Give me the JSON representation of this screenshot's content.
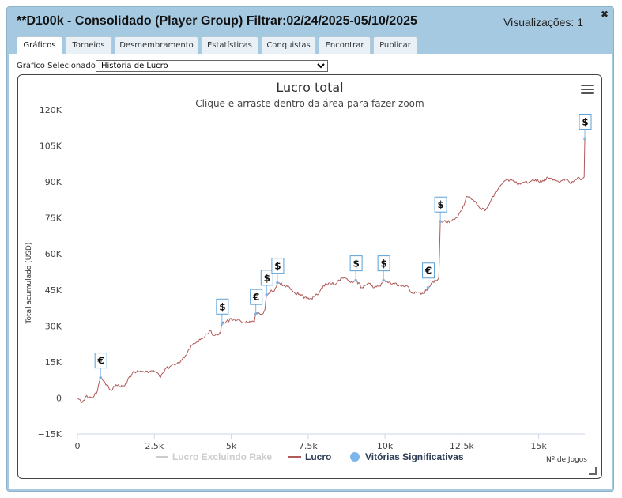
{
  "window": {
    "title": "**D100k - Consolidado (Player Group) Filtrar:02/24/2025-05/10/2025",
    "views": "Visualizações: 1",
    "close_icon": "close-icon"
  },
  "tabs": [
    {
      "label": "Gráficos",
      "active": true
    },
    {
      "label": "Torneios",
      "active": false
    },
    {
      "label": "Desmembramento",
      "active": false
    },
    {
      "label": "Estatísticas",
      "active": false
    },
    {
      "label": "Conquistas",
      "active": false
    },
    {
      "label": "Encontrar",
      "active": false
    },
    {
      "label": "Publicar",
      "active": false
    }
  ],
  "selector": {
    "label": "Gráfico Selecionado:",
    "value": "História de Lucro"
  },
  "chart_data": {
    "type": "line",
    "title": "Lucro total",
    "subtitle": "Clique e arraste dentro da área para fazer zoom",
    "ylabel": "Total acumulado (USD)",
    "xlabel": "Nº de Jogos",
    "xlim": [
      0,
      16500
    ],
    "ylim": [
      -15000,
      120000
    ],
    "x_ticks": [
      {
        "value": 0,
        "label": "0"
      },
      {
        "value": 2500,
        "label": "2.5k"
      },
      {
        "value": 5000,
        "label": "5k"
      },
      {
        "value": 7500,
        "label": "7.5k"
      },
      {
        "value": 10000,
        "label": "10k"
      },
      {
        "value": 12500,
        "label": "12.5k"
      },
      {
        "value": 15000,
        "label": "15k"
      }
    ],
    "y_ticks": [
      {
        "value": -15000,
        "label": "−15K"
      },
      {
        "value": 0,
        "label": "0"
      },
      {
        "value": 15000,
        "label": "15K"
      },
      {
        "value": 30000,
        "label": "30K"
      },
      {
        "value": 45000,
        "label": "45K"
      },
      {
        "value": 60000,
        "label": "60K"
      },
      {
        "value": 75000,
        "label": "75K"
      },
      {
        "value": 90000,
        "label": "90K"
      },
      {
        "value": 105000,
        "label": "105K"
      },
      {
        "value": 120000,
        "label": "120K"
      }
    ],
    "grid": false,
    "legend_position": "bottom",
    "legend": [
      {
        "label": "Lucro Excluindo Rake",
        "color": "#cccccc",
        "symbol": "line",
        "enabled": false
      },
      {
        "label": "Lucro",
        "color": "#b05a5a",
        "symbol": "line",
        "enabled": true
      },
      {
        "label": "Vitórias Significativas",
        "color": "#7cb5ec",
        "symbol": "circle",
        "enabled": true
      }
    ],
    "series": [
      {
        "name": "Lucro",
        "color": "#b05a5a",
        "points": [
          [
            0,
            0
          ],
          [
            150,
            -2000
          ],
          [
            300,
            1000
          ],
          [
            500,
            0
          ],
          [
            650,
            3000
          ],
          [
            750,
            8500
          ],
          [
            850,
            7000
          ],
          [
            1000,
            5000
          ],
          [
            1100,
            3000
          ],
          [
            1250,
            5500
          ],
          [
            1400,
            4500
          ],
          [
            1600,
            6000
          ],
          [
            1700,
            9000
          ],
          [
            1850,
            11000
          ],
          [
            2100,
            11000
          ],
          [
            2300,
            10500
          ],
          [
            2500,
            11000
          ],
          [
            2700,
            8500
          ],
          [
            2850,
            12000
          ],
          [
            3000,
            13000
          ],
          [
            3200,
            14000
          ],
          [
            3400,
            16000
          ],
          [
            3550,
            18000
          ],
          [
            3700,
            22000
          ],
          [
            3900,
            23500
          ],
          [
            4100,
            25000
          ],
          [
            4300,
            28000
          ],
          [
            4450,
            26000
          ],
          [
            4600,
            26500
          ],
          [
            4650,
            27000
          ],
          [
            4700,
            31000
          ],
          [
            4850,
            32000
          ],
          [
            5100,
            33000
          ],
          [
            5350,
            31500
          ],
          [
            5600,
            32000
          ],
          [
            5750,
            31500
          ],
          [
            5800,
            35000
          ],
          [
            6000,
            35000
          ],
          [
            6100,
            37000
          ],
          [
            6150,
            43000
          ],
          [
            6300,
            45000
          ],
          [
            6400,
            44500
          ],
          [
            6500,
            48000
          ],
          [
            6700,
            47000
          ],
          [
            6900,
            46000
          ],
          [
            7050,
            44000
          ],
          [
            7200,
            43000
          ],
          [
            7400,
            42000
          ],
          [
            7600,
            41500
          ],
          [
            7800,
            43000
          ],
          [
            8000,
            47000
          ],
          [
            8200,
            48000
          ],
          [
            8400,
            47500
          ],
          [
            8600,
            50000
          ],
          [
            8800,
            49000
          ],
          [
            8950,
            48000
          ],
          [
            9050,
            49000
          ],
          [
            9250,
            46000
          ],
          [
            9450,
            48000
          ],
          [
            9650,
            46000
          ],
          [
            9850,
            46500
          ],
          [
            9950,
            49000
          ],
          [
            10100,
            48000
          ],
          [
            10300,
            47500
          ],
          [
            10500,
            47000
          ],
          [
            10700,
            47000
          ],
          [
            10800,
            45000
          ],
          [
            10950,
            43500
          ],
          [
            11100,
            44000
          ],
          [
            11250,
            43500
          ],
          [
            11400,
            46000
          ],
          [
            11550,
            48500
          ],
          [
            11700,
            49000
          ],
          [
            11750,
            50000
          ],
          [
            11800,
            73500
          ],
          [
            11950,
            74000
          ],
          [
            12100,
            73000
          ],
          [
            12300,
            75000
          ],
          [
            12500,
            78000
          ],
          [
            12650,
            84000
          ],
          [
            12900,
            82000
          ],
          [
            13100,
            79000
          ],
          [
            13250,
            78000
          ],
          [
            13400,
            81000
          ],
          [
            13600,
            86000
          ],
          [
            13800,
            89000
          ],
          [
            14000,
            91000
          ],
          [
            14200,
            90000
          ],
          [
            14400,
            89000
          ],
          [
            14700,
            90000
          ],
          [
            14900,
            91000
          ],
          [
            15100,
            90000
          ],
          [
            15300,
            92000
          ],
          [
            15500,
            91000
          ],
          [
            15700,
            90000
          ],
          [
            15900,
            91000
          ],
          [
            16050,
            89000
          ],
          [
            16200,
            91000
          ],
          [
            16300,
            92000
          ],
          [
            16400,
            91000
          ],
          [
            16480,
            92000
          ],
          [
            16500,
            108000
          ]
        ]
      }
    ],
    "significant_wins": [
      {
        "x": 750,
        "y": 8500,
        "label": "€"
      },
      {
        "x": 4700,
        "y": 31000,
        "label": "$"
      },
      {
        "x": 5800,
        "y": 35000,
        "label": "€"
      },
      {
        "x": 6150,
        "y": 43000,
        "label": "$"
      },
      {
        "x": 6500,
        "y": 48000,
        "label": "$"
      },
      {
        "x": 9050,
        "y": 49000,
        "label": "$"
      },
      {
        "x": 9950,
        "y": 49000,
        "label": "$"
      },
      {
        "x": 11400,
        "y": 46000,
        "label": "€"
      },
      {
        "x": 11800,
        "y": 73500,
        "label": "$"
      },
      {
        "x": 16500,
        "y": 108000,
        "label": "$"
      }
    ]
  }
}
